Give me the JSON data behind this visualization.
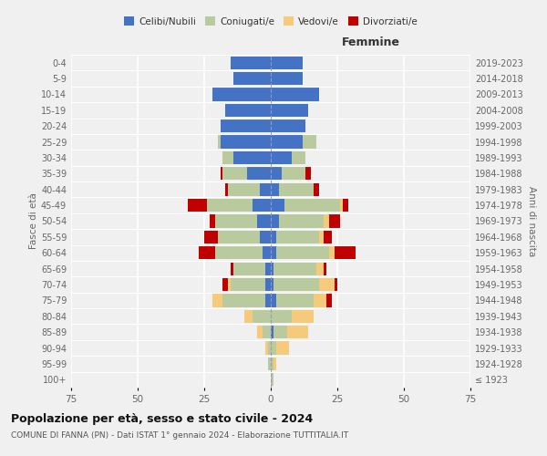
{
  "age_groups": [
    "100+",
    "95-99",
    "90-94",
    "85-89",
    "80-84",
    "75-79",
    "70-74",
    "65-69",
    "60-64",
    "55-59",
    "50-54",
    "45-49",
    "40-44",
    "35-39",
    "30-34",
    "25-29",
    "20-24",
    "15-19",
    "10-14",
    "5-9",
    "0-4"
  ],
  "birth_years": [
    "≤ 1923",
    "1924-1928",
    "1929-1933",
    "1934-1938",
    "1939-1943",
    "1944-1948",
    "1949-1953",
    "1954-1958",
    "1959-1963",
    "1964-1968",
    "1969-1973",
    "1974-1978",
    "1979-1983",
    "1984-1988",
    "1989-1993",
    "1994-1998",
    "1999-2003",
    "2004-2008",
    "2009-2013",
    "2014-2018",
    "2019-2023"
  ],
  "males": {
    "celibe": [
      0,
      0,
      0,
      0,
      0,
      2,
      2,
      2,
      3,
      4,
      5,
      7,
      4,
      9,
      14,
      19,
      19,
      17,
      22,
      14,
      15
    ],
    "coniugato": [
      0,
      1,
      1,
      3,
      7,
      16,
      13,
      12,
      18,
      16,
      16,
      17,
      12,
      9,
      4,
      1,
      0,
      0,
      0,
      0,
      0
    ],
    "vedovo": [
      0,
      0,
      1,
      2,
      3,
      4,
      1,
      0,
      0,
      0,
      0,
      0,
      0,
      0,
      0,
      0,
      0,
      0,
      0,
      0,
      0
    ],
    "divorziato": [
      0,
      0,
      0,
      0,
      0,
      0,
      2,
      1,
      6,
      5,
      2,
      7,
      1,
      1,
      0,
      0,
      0,
      0,
      0,
      0,
      0
    ]
  },
  "females": {
    "nubile": [
      0,
      0,
      0,
      1,
      0,
      2,
      1,
      1,
      2,
      2,
      3,
      5,
      3,
      4,
      8,
      12,
      13,
      14,
      18,
      12,
      12
    ],
    "coniugata": [
      1,
      1,
      2,
      5,
      8,
      14,
      17,
      16,
      20,
      16,
      17,
      21,
      13,
      9,
      5,
      5,
      0,
      0,
      0,
      0,
      0
    ],
    "vedova": [
      0,
      1,
      5,
      8,
      8,
      5,
      6,
      3,
      2,
      2,
      2,
      1,
      0,
      0,
      0,
      0,
      0,
      0,
      0,
      0,
      0
    ],
    "divorziata": [
      0,
      0,
      0,
      0,
      0,
      2,
      1,
      1,
      8,
      3,
      4,
      2,
      2,
      2,
      0,
      0,
      0,
      0,
      0,
      0,
      0
    ]
  },
  "colors": {
    "celibe": "#4472c4",
    "coniugato": "#b8ca9e",
    "vedovo": "#f5ca7a",
    "divorziato": "#c00000"
  },
  "xlim": 75,
  "title": "Popolazione per età, sesso e stato civile - 2024",
  "subtitle": "COMUNE DI FANNA (PN) - Dati ISTAT 1° gennaio 2024 - Elaborazione TUTTITALIA.IT",
  "ylabel_left": "Fasce di età",
  "ylabel_right": "Anni di nascita",
  "xlabel_right": "Femmine",
  "legend_labels": [
    "Celibi/Nubili",
    "Coniugati/e",
    "Vedovi/e",
    "Divorziati/e"
  ],
  "background_color": "#f0f0f0",
  "grid_color": "#ffffff",
  "tick_color": "#666666"
}
